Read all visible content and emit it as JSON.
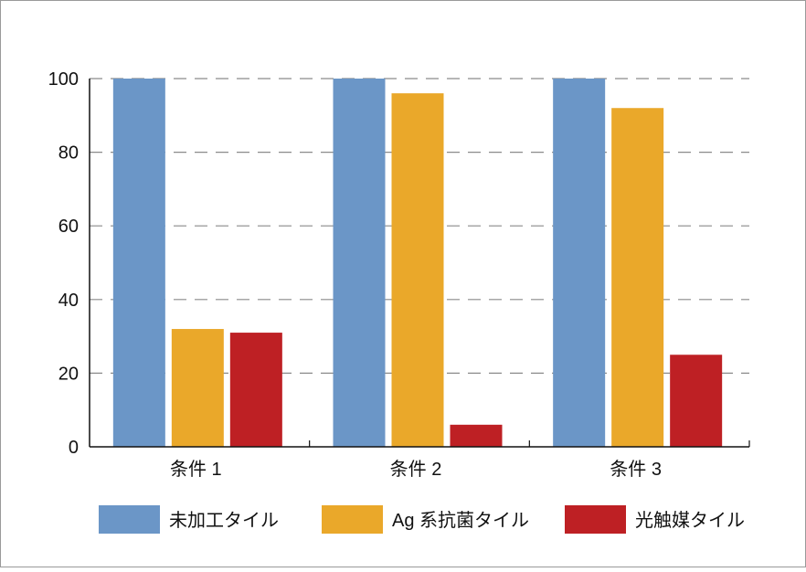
{
  "chart_data": {
    "type": "bar",
    "categories": [
      "条件 1",
      "条件 2",
      "条件 3"
    ],
    "series": [
      {
        "name": "未加工タイル",
        "values": [
          100,
          100,
          100
        ],
        "color": "#6b96c7"
      },
      {
        "name": "Ag 系抗菌タイル",
        "values": [
          32,
          96,
          92
        ],
        "color": "#eaa82a"
      },
      {
        "name": "光触媒タイル",
        "values": [
          31,
          6,
          25
        ],
        "color": "#be2024"
      }
    ],
    "ylim": [
      0,
      100
    ],
    "yticks": [
      "0",
      "20",
      "40",
      "60",
      "80",
      "100"
    ],
    "grid": "dashed horizontal",
    "legend_position": "bottom"
  }
}
